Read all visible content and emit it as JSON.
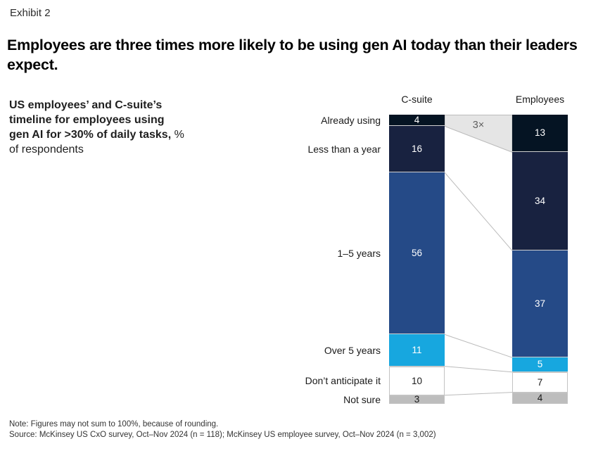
{
  "exhibit_label": "Exhibit 2",
  "title": "Employees are three times more likely to be using gen AI today than their leaders expect.",
  "subtitle": {
    "bold_lines": [
      "US employees’ and C-suite’s",
      "timeline for employees using",
      "gen AI for >30% of daily tasks,"
    ],
    "regular_inline": " %",
    "regular_line": "of respondents"
  },
  "chart_data": {
    "type": "bar",
    "subtype": "stacked-100pct-column-comparison",
    "unit": "% of respondents",
    "categories": [
      "Already using",
      "Less than a year",
      "1–5 years",
      "Over 5 years",
      "Don’t anticipate it",
      "Not sure"
    ],
    "series": [
      {
        "name": "C-suite",
        "values": [
          4,
          16,
          56,
          11,
          10,
          3
        ]
      },
      {
        "name": "Employees",
        "values": [
          13,
          34,
          37,
          5,
          7,
          4
        ]
      }
    ],
    "annotation": "3×",
    "value_labels": true,
    "legend_position": "none",
    "ylim": [
      0,
      100
    ],
    "colors": {
      "segments": [
        "#051423",
        "#182240",
        "#254A87",
        "#17A7DF",
        "#FFFFFF",
        "#BDBDBD"
      ],
      "label_colors": [
        "#FFFFFF",
        "#FFFFFF",
        "#FFFFFF",
        "#FFFFFF",
        "#1A1A1A",
        "#1A1A1A"
      ],
      "connector_fill": "#E5E5E5",
      "connector_stroke": "#BBBBBB",
      "light_segment_border": "#C3C3C3",
      "dark_segment_divider": "#CFCFCF"
    }
  },
  "footer": {
    "note": "Note: Figures may not sum to 100%, because of rounding.",
    "source": "Source: McKinsey US CxO survey, Oct–Nov 2024 (n = 118); McKinsey US employee survey, Oct–Nov 2024 (n = 3,002)"
  }
}
